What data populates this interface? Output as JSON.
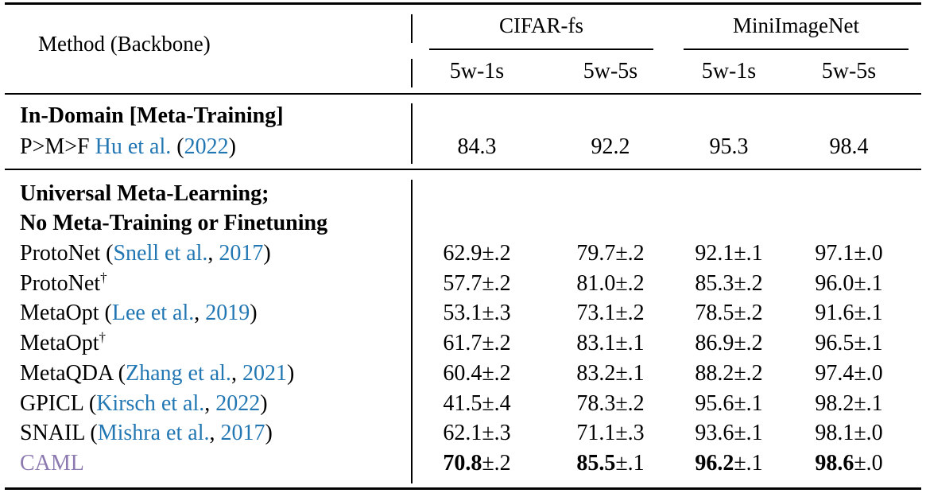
{
  "header": {
    "method_label": "Method (Backbone)",
    "groups": [
      "CIFAR-fs",
      "MiniImageNet"
    ],
    "subcolumns": [
      "5w-1s",
      "5w-5s",
      "5w-1s",
      "5w-5s"
    ]
  },
  "sections": [
    {
      "title_lines": [
        "In-Domain [Meta-Training]"
      ],
      "rows": [
        {
          "method": "P>M>F",
          "cite_author": "Hu et al.",
          "cite_year": "2022",
          "cite_style": "textual",
          "values": [
            "84.3",
            "92.2",
            "95.3",
            "98.4"
          ]
        }
      ]
    },
    {
      "title_lines": [
        "Universal Meta-Learning;",
        "No Meta-Training or Finetuning"
      ],
      "rows": [
        {
          "method": "ProtoNet",
          "cite_author": "Snell et al.",
          "cite_year": "2017",
          "values": [
            "62.9±.2",
            "79.7±.2",
            "92.1±.1",
            "97.1±.0"
          ]
        },
        {
          "method": "ProtoNet",
          "sup": "†",
          "values": [
            "57.7±.2",
            "81.0±.2",
            "85.3±.2",
            "96.0±.1"
          ]
        },
        {
          "method": "MetaOpt",
          "cite_author": "Lee et al.",
          "cite_year": "2019",
          "values": [
            "53.1±.3",
            "73.1±.2",
            "78.5±.2",
            "91.6±.1"
          ]
        },
        {
          "method": "MetaOpt",
          "sup": "†",
          "values": [
            "61.7±.2",
            "83.1±.1",
            "86.9±.2",
            "96.5±.1"
          ]
        },
        {
          "method": "MetaQDA",
          "cite_author": "Zhang et al.",
          "cite_year": "2021",
          "values": [
            "60.4±.2",
            "83.2±.1",
            "88.2±.2",
            "97.4±.0"
          ]
        },
        {
          "method": "GPICL",
          "cite_author": "Kirsch et al.",
          "cite_year": "2022",
          "values": [
            "41.5±.4",
            "78.3±.2",
            "95.6±.1",
            "98.2±.1"
          ]
        },
        {
          "method": "SNAIL",
          "cite_author": "Mishra et al.",
          "cite_year": "2017",
          "values": [
            "62.1±.3",
            "71.1±.3",
            "93.6±.1",
            "98.1±.0"
          ]
        },
        {
          "method": "CAML",
          "highlight": true,
          "values_main": [
            "70.8",
            "85.5",
            "96.2",
            "98.6"
          ],
          "values_pm": [
            "±.2",
            "±.1",
            "±.1",
            "±.0"
          ]
        }
      ]
    }
  ],
  "colors": {
    "link": "#2277b3",
    "caml": "#8c7ab0"
  }
}
